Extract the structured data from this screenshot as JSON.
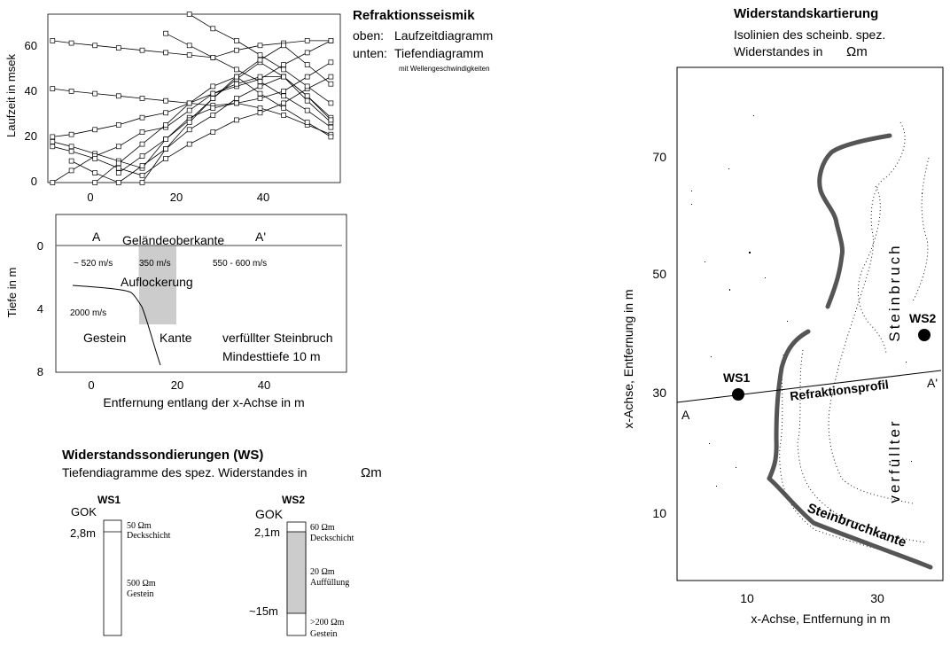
{
  "refraction": {
    "title": "Refraktionsseismik",
    "line1_label": "oben:",
    "line1_text": "Laufzeitdiagramm",
    "line2_label": "unten:",
    "line2_text": "Tiefendiagramm",
    "line2_sub": "mit Wellengeschwindigkeiten"
  },
  "traveltime": {
    "ylabel": "Laufzeit in msek",
    "xticks": [
      "0",
      "20",
      "40"
    ],
    "yticks": [
      "0",
      "20",
      "40",
      "60"
    ],
    "xlim": [
      -5,
      57
    ],
    "ylim": [
      0,
      70
    ]
  },
  "depth": {
    "ylabel": "Tiefe in m",
    "xlabel": "Entfernung entlang der x-Achse in m",
    "xticks": [
      "0",
      "20",
      "40"
    ],
    "yticks": [
      "0",
      "4",
      "8"
    ],
    "xlim": [
      -8,
      58
    ],
    "ylim": [
      8,
      -2
    ],
    "label_A": "A",
    "label_A2": "A'",
    "surface_label": "Geländeoberkante",
    "v1": "~ 520 m/s",
    "v2": "350 m/s",
    "v3": "550 - 600 m/s",
    "loosening": "Auflockerung",
    "v4": "2000 m/s",
    "rock": "Gestein",
    "edge": "Kante",
    "filled1": "verfüllter Steinbruch",
    "filled2": "Mindesttiefe 10 m",
    "fill_color": "#cccccc"
  },
  "sounding": {
    "title": "Widerstandssondierungen (WS)",
    "subtitle": "Tiefendiagramme des spez. Widerstandes in",
    "unit": "Ωm",
    "ws1": {
      "name": "WS1",
      "gok": "GOK",
      "depth": "2,8m",
      "r1": "50 Ωm",
      "l1": "Deckschicht",
      "r2": "500 Ωm",
      "l2": "Gestein"
    },
    "ws2": {
      "name": "WS2",
      "gok": "GOK",
      "depth1": "2,1m",
      "depth2": "~15m",
      "r1": "60 Ωm",
      "l1": "Deckschicht",
      "r2": "20 Ωm",
      "l2": "Auffüllung",
      "r3": ">200 Ωm",
      "l3": "Gestein"
    }
  },
  "mapping": {
    "title": "Widerstandskartierung",
    "sub1": "Isolinien des scheinb. spez.",
    "sub2": "Widerstandes in",
    "unit": "Ωm",
    "ylabel": "x-Achse, Entfernung in m",
    "xlabel": "x-Achse, Entfernung in m",
    "xticks": [
      "10",
      "30"
    ],
    "yticks": [
      "10",
      "30",
      "50",
      "70"
    ],
    "ws1": "WS1",
    "ws2": "WS2",
    "profile": "Refraktionsprofil",
    "a": "A",
    "a2": "A'",
    "quarry_word": "Steinbruch",
    "filled_word": "verfüllter",
    "edge_label": "Steinbruchkante",
    "edge_color": "#555555"
  },
  "chart_data": {
    "type": "line",
    "title": "",
    "xlabel": "",
    "ylabel": "Laufzeit in msek",
    "xlim": [
      -5,
      57
    ],
    "ylim": [
      0,
      70
    ],
    "series": [
      {
        "x": [
          -4,
          0,
          5,
          10,
          15,
          20,
          25,
          30,
          35,
          40,
          45,
          50,
          55
        ],
        "y": [
          59,
          58,
          57,
          56,
          55,
          54,
          53,
          52,
          55,
          57,
          58,
          59,
          59
        ]
      },
      {
        "x": [
          -4,
          0,
          5,
          10,
          15,
          20,
          25,
          30,
          35,
          40,
          45,
          50,
          55
        ],
        "y": [
          39,
          38,
          37,
          36,
          35,
          34,
          33,
          32,
          33,
          31,
          28,
          24,
          20
        ]
      },
      {
        "x": [
          -4,
          0,
          5,
          10,
          15,
          20,
          25,
          30,
          35,
          40,
          45,
          50,
          55
        ],
        "y": [
          17,
          15,
          12,
          9,
          6,
          18,
          27,
          31,
          33,
          35,
          38,
          44,
          50
        ]
      },
      {
        "x": [
          -4,
          0,
          5,
          10,
          15,
          20,
          25,
          30,
          35,
          40,
          45,
          50,
          55
        ],
        "y": [
          0,
          5,
          11,
          15,
          21,
          23,
          30,
          37,
          40,
          43,
          49,
          54,
          59
        ]
      },
      {
        "x": [
          -4,
          0,
          5,
          10,
          15,
          20,
          25,
          30,
          35,
          40,
          45,
          50,
          55
        ],
        "y": [
          19,
          20,
          22,
          24,
          27,
          29,
          33,
          37,
          41,
          44,
          44,
          36,
          27
        ]
      },
      {
        "x": [
          -4,
          0,
          5,
          10,
          15,
          20,
          25,
          30,
          35,
          40,
          45,
          50,
          55
        ],
        "y": [
          15,
          13,
          10,
          6,
          3,
          10,
          16,
          21,
          26,
          29,
          33,
          39,
          44
        ]
      },
      {
        "x": [
          0,
          5,
          10,
          15,
          20,
          25,
          30,
          35,
          40,
          45,
          50,
          55
        ],
        "y": [
          9,
          4,
          0,
          7,
          14,
          22,
          28,
          35,
          40,
          44,
          34,
          25
        ]
      },
      {
        "x": [
          5,
          10,
          15,
          20,
          25,
          30,
          35,
          40,
          45,
          50,
          55
        ],
        "y": [
          0,
          8,
          16,
          24,
          33,
          40,
          44,
          37,
          31,
          25,
          19
        ]
      },
      {
        "x": [
          10,
          15,
          20,
          25,
          30,
          35,
          40,
          45,
          50,
          55
        ],
        "y": [
          4,
          11,
          18,
          26,
          35,
          43,
          50,
          44,
          36,
          26
        ]
      },
      {
        "x": [
          15,
          20,
          25,
          30,
          35,
          40,
          45,
          50,
          55
        ],
        "y": [
          0,
          14,
          25,
          35,
          44,
          51,
          57,
          49,
          41
        ]
      },
      {
        "x": [
          20,
          25,
          30,
          35,
          40,
          45,
          50,
          55
        ],
        "y": [
          62,
          57,
          52,
          47,
          42,
          36,
          30,
          23
        ]
      },
      {
        "x": [
          25,
          30,
          35,
          40,
          45,
          50,
          55
        ],
        "y": [
          70,
          64,
          59,
          53,
          47,
          40,
          33
        ]
      }
    ]
  }
}
